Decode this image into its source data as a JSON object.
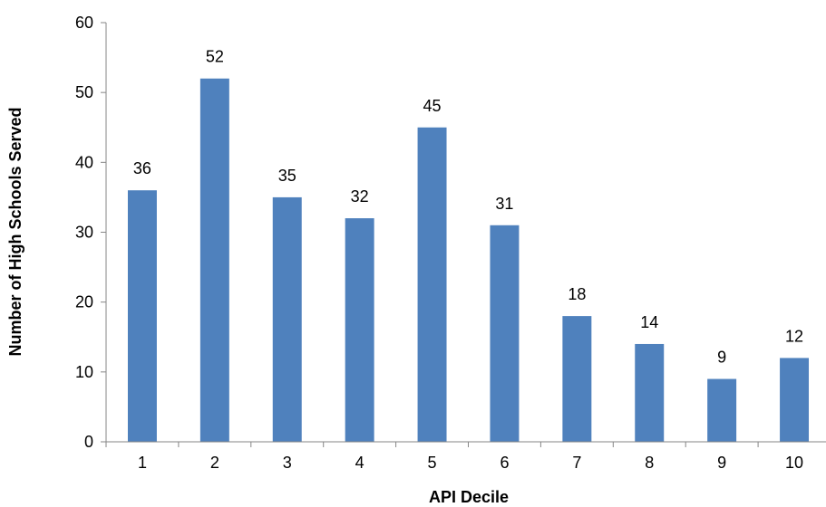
{
  "chart_data": {
    "type": "bar",
    "title": "",
    "xlabel": "API Decile",
    "ylabel": "Number of High Schools Served",
    "categories": [
      "1",
      "2",
      "3",
      "4",
      "5",
      "6",
      "7",
      "8",
      "9",
      "10"
    ],
    "values": [
      36,
      52,
      35,
      32,
      45,
      31,
      18,
      14,
      9,
      12
    ],
    "data_labels": [
      "36",
      "52",
      "35",
      "32",
      "45",
      "31",
      "18",
      "14",
      "9",
      "12"
    ],
    "ylim": [
      0,
      60
    ],
    "yticks": [
      0,
      10,
      20,
      30,
      40,
      50,
      60
    ],
    "grid": false,
    "legend": "none",
    "colors": {
      "bar": "#4F81BD",
      "axis": "#868686"
    }
  }
}
